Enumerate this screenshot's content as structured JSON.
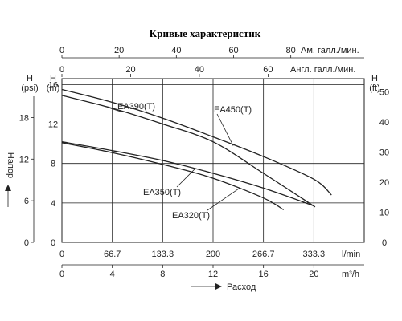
{
  "chart_data": {
    "type": "line",
    "title": "Кривые характеристик",
    "ylabel_left": "Напор",
    "xlabel_bottom": "Расход",
    "ylabel_units": {
      "psi": "H\n(psi)",
      "m": "H\n(m)",
      "ft": "H\n(ft)"
    },
    "top_axes": {
      "us": {
        "unit": "Ам. галл./мин.",
        "ticks": [
          "0",
          "20",
          "40",
          "60",
          "80"
        ],
        "values": [
          0,
          20,
          40,
          60,
          80
        ]
      },
      "imp": {
        "unit": "Англ. галл./мин.",
        "ticks": [
          "0",
          "20",
          "40",
          "60"
        ],
        "values": [
          0,
          20,
          40,
          60
        ]
      }
    },
    "bottom_axes": {
      "lpm": {
        "unit": "l/min",
        "ticks": [
          "0",
          "66.7",
          "133.3",
          "200",
          "266.7",
          "333.3"
        ],
        "values": [
          0,
          66.7,
          133.3,
          200,
          266.7,
          333.3
        ]
      },
      "m3h": {
        "unit": "m³/h",
        "ticks": [
          "0",
          "4",
          "8",
          "12",
          "16",
          "20"
        ],
        "values": [
          0,
          4,
          8,
          12,
          16,
          20
        ]
      }
    },
    "left_axes": {
      "psi": {
        "ticks": [
          "0",
          "6",
          "12",
          "18"
        ],
        "values": [
          0,
          6,
          12,
          18
        ]
      },
      "m": {
        "ticks": [
          "0",
          "4",
          "8",
          "12",
          "16"
        ],
        "values": [
          0,
          4,
          8,
          12,
          16
        ]
      }
    },
    "right_axis": {
      "ft": {
        "ticks": [
          "0",
          "10",
          "20",
          "30",
          "40",
          "50"
        ],
        "values": [
          0,
          10,
          20,
          30,
          40,
          50
        ]
      }
    },
    "xlim_m3h": [
      0,
      24
    ],
    "ylim_m": [
      0,
      16.6
    ],
    "grid": true,
    "series": [
      {
        "name": "EA390(T)",
        "x": [
          0,
          4,
          8,
          12,
          16,
          20.1
        ],
        "y": [
          14.9,
          13.6,
          12.0,
          10.2,
          7.0,
          3.6
        ]
      },
      {
        "name": "EA450(T)",
        "x": [
          0,
          4,
          8,
          12,
          16,
          20,
          21.4
        ],
        "y": [
          15.5,
          14.2,
          12.6,
          10.7,
          8.7,
          6.4,
          4.8
        ]
      },
      {
        "name": "EA350(T)",
        "x": [
          0,
          4,
          8,
          12,
          16,
          20
        ],
        "y": [
          10.2,
          9.3,
          8.3,
          7.0,
          5.5,
          3.7
        ]
      },
      {
        "name": "EA320(T)",
        "x": [
          0,
          4,
          8,
          12,
          16,
          17.6
        ],
        "y": [
          10.1,
          9.1,
          7.9,
          6.5,
          4.5,
          3.3
        ]
      }
    ]
  }
}
